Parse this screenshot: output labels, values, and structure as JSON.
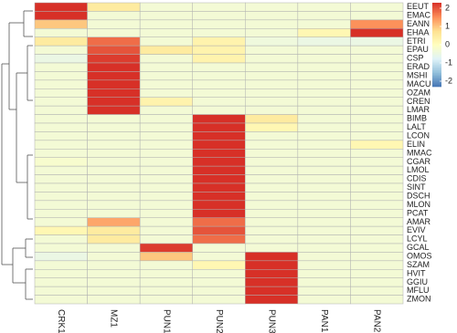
{
  "chart_data": {
    "type": "heatmap",
    "columns": [
      "CRK1",
      "MZ1",
      "PUN1",
      "PUN2",
      "PUN3",
      "PAN1",
      "PAN2"
    ],
    "rows": [
      "EEUT",
      "EMAC",
      "EANN",
      "EHAA",
      "ETRI",
      "EPAU",
      "CSP",
      "ERAD",
      "MSHI",
      "MACU",
      "OZAM",
      "CREN",
      "LMAR",
      "BIMB",
      "LALT",
      "LCON",
      "ELIN",
      "MMAC",
      "CGAR",
      "LMOL",
      "CDIS",
      "SINT",
      "DSCH",
      "MLON",
      "PCAT",
      "AMAR",
      "EVIV",
      "LCYL",
      "GCAL",
      "OMOS",
      "SZAM",
      "HVIT",
      "GGIU",
      "MFLU",
      "ZMON"
    ],
    "values": [
      [
        2.3,
        0.5,
        -0.3,
        -0.3,
        -0.3,
        -0.3,
        -0.3
      ],
      [
        2.3,
        -0.3,
        -0.3,
        -0.3,
        -0.3,
        -0.3,
        -0.3
      ],
      [
        1.0,
        -0.3,
        -0.3,
        -0.3,
        -0.3,
        -0.3,
        1.5
      ],
      [
        -0.3,
        -0.3,
        -0.3,
        -0.3,
        -0.3,
        0.2,
        2.3
      ],
      [
        0.5,
        1.8,
        -0.3,
        0.3,
        -0.4,
        -0.5,
        -0.5
      ],
      [
        -0.3,
        2.0,
        0.5,
        0.3,
        -0.3,
        -0.3,
        -0.3
      ],
      [
        -0.5,
        2.2,
        -0.3,
        0.3,
        -0.3,
        -0.3,
        -0.3
      ],
      [
        -0.3,
        2.3,
        -0.3,
        -0.3,
        -0.3,
        -0.3,
        -0.3
      ],
      [
        -0.3,
        2.3,
        -0.3,
        -0.3,
        -0.3,
        -0.3,
        -0.3
      ],
      [
        -0.3,
        2.3,
        -0.3,
        -0.3,
        -0.3,
        -0.3,
        -0.3
      ],
      [
        -0.3,
        2.3,
        -0.3,
        -0.3,
        -0.3,
        -0.3,
        -0.3
      ],
      [
        -0.3,
        2.3,
        0.3,
        -0.3,
        -0.3,
        -0.3,
        -0.3
      ],
      [
        -0.3,
        2.3,
        -0.3,
        -0.3,
        -0.3,
        -0.3,
        -0.3
      ],
      [
        -0.3,
        -0.3,
        -0.3,
        2.3,
        0.5,
        -0.3,
        -0.3
      ],
      [
        -0.3,
        -0.3,
        -0.3,
        2.3,
        0.2,
        -0.3,
        -0.3
      ],
      [
        -0.3,
        -0.3,
        -0.3,
        2.3,
        -0.3,
        -0.3,
        -0.3
      ],
      [
        -0.3,
        -0.3,
        -0.3,
        2.3,
        -0.3,
        -0.3,
        0.2
      ],
      [
        -0.3,
        -0.3,
        -0.3,
        2.3,
        -0.3,
        -0.3,
        -0.3
      ],
      [
        -0.2,
        -0.3,
        -0.3,
        2.3,
        -0.3,
        -0.3,
        -0.3
      ],
      [
        -0.3,
        -0.3,
        -0.3,
        2.3,
        -0.3,
        -0.3,
        -0.3
      ],
      [
        -0.3,
        -0.3,
        -0.3,
        2.3,
        -0.3,
        -0.3,
        -0.3
      ],
      [
        -0.3,
        -0.3,
        -0.3,
        2.3,
        -0.3,
        -0.3,
        -0.3
      ],
      [
        -0.3,
        -0.3,
        -0.3,
        2.3,
        -0.3,
        -0.3,
        -0.3
      ],
      [
        -0.3,
        -0.3,
        -0.3,
        2.3,
        -0.3,
        -0.3,
        -0.3
      ],
      [
        -0.3,
        -0.3,
        -0.3,
        2.3,
        -0.3,
        -0.3,
        -0.3
      ],
      [
        -0.3,
        1.3,
        -0.3,
        1.8,
        -0.3,
        -0.3,
        -0.3
      ],
      [
        0.2,
        0.5,
        -0.3,
        2.0,
        -0.3,
        -0.3,
        -0.3
      ],
      [
        -0.3,
        0.5,
        -0.3,
        1.8,
        -0.3,
        -0.3,
        -0.3
      ],
      [
        -0.3,
        -0.3,
        2.2,
        -0.3,
        -0.3,
        -0.3,
        -0.3
      ],
      [
        -0.5,
        -0.3,
        1.0,
        -0.3,
        2.3,
        -0.3,
        -0.3
      ],
      [
        -0.3,
        -0.3,
        -0.3,
        0.2,
        2.3,
        -0.3,
        -0.3
      ],
      [
        -0.3,
        -0.3,
        -0.3,
        -0.3,
        2.3,
        -0.3,
        -0.3
      ],
      [
        -0.3,
        -0.3,
        -0.3,
        -0.3,
        2.3,
        -0.3,
        -0.3
      ],
      [
        -0.3,
        -0.3,
        -0.3,
        -0.3,
        2.3,
        -0.3,
        -0.3
      ],
      [
        -0.3,
        -0.3,
        -0.3,
        -0.3,
        2.3,
        -0.3,
        -0.3
      ]
    ],
    "colors": [
      "#4575b4",
      "#91bfdb",
      "#e0f3f8",
      "#ffffbf",
      "#fee090",
      "#fc8d59",
      "#d73027"
    ],
    "clim": [
      -2.3,
      2.3
    ],
    "ticks": [
      2,
      1,
      0,
      -1,
      -2
    ]
  }
}
